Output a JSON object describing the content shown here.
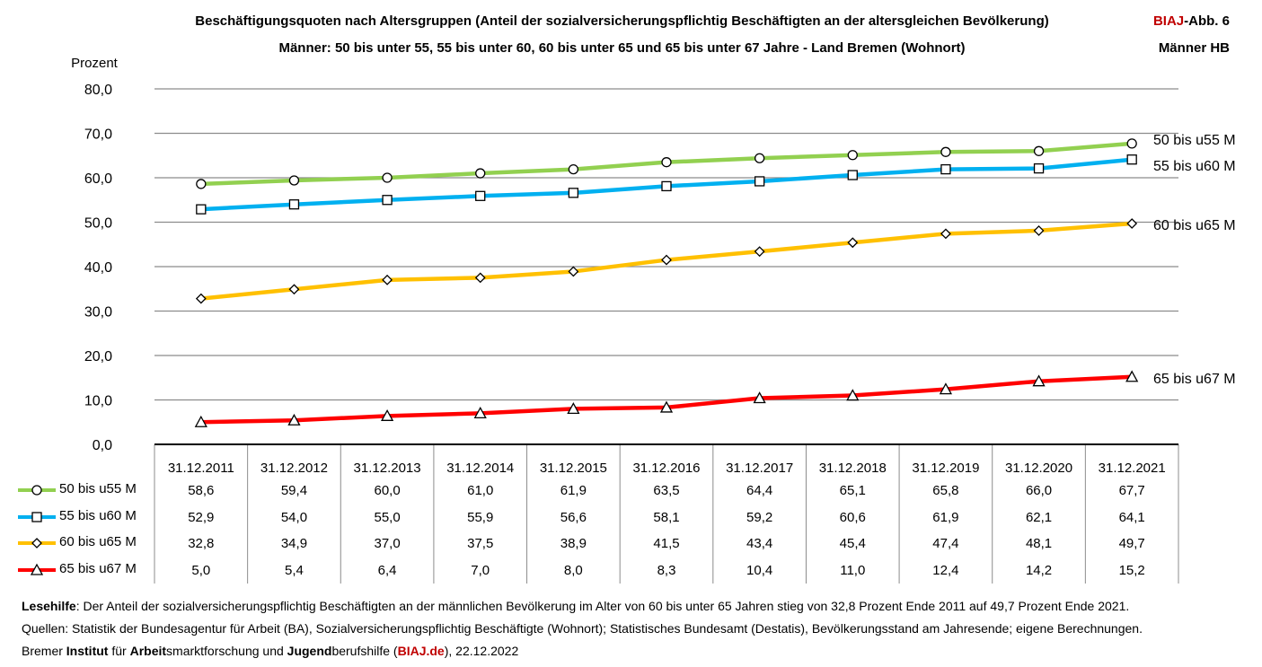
{
  "chart_data": {
    "type": "line",
    "title": "Beschäftigungsquoten nach Altersgruppen (Anteil der sozialversicherungspflichtig Beschäftigten an der altersgleichen Bevölkerung)",
    "subtitle": "Männer: 50 bis unter 55, 55 bis unter 60, 60 bis unter 65 und 65 bis unter 67 Jahre - Land Bremen (Wohnort)",
    "ylabel": "Prozent",
    "ylim": [
      0,
      80
    ],
    "yticks": [
      "0,0",
      "10,0",
      "20,0",
      "30,0",
      "40,0",
      "50,0",
      "60,0",
      "70,0",
      "80,0"
    ],
    "categories": [
      "31.12.2011",
      "31.12.2012",
      "31.12.2013",
      "31.12.2014",
      "31.12.2015",
      "31.12.2016",
      "31.12.2017",
      "31.12.2018",
      "31.12.2019",
      "31.12.2020",
      "31.12.2021"
    ],
    "series": [
      {
        "name": "50 bis u55 M",
        "color": "#92d050",
        "marker": "circle",
        "values": [
          58.6,
          59.4,
          60.0,
          61.0,
          61.9,
          63.5,
          64.4,
          65.1,
          65.8,
          66.0,
          67.7
        ],
        "labels": [
          "58,6",
          "59,4",
          "60,0",
          "61,0",
          "61,9",
          "63,5",
          "64,4",
          "65,1",
          "65,8",
          "66,0",
          "67,7"
        ]
      },
      {
        "name": "55 bis u60 M",
        "color": "#00b0f0",
        "marker": "square",
        "values": [
          52.9,
          54.0,
          55.0,
          55.9,
          56.6,
          58.1,
          59.2,
          60.6,
          61.9,
          62.1,
          64.1
        ],
        "labels": [
          "52,9",
          "54,0",
          "55,0",
          "55,9",
          "56,6",
          "58,1",
          "59,2",
          "60,6",
          "61,9",
          "62,1",
          "64,1"
        ]
      },
      {
        "name": "60 bis u65 M",
        "color": "#ffc000",
        "marker": "diamond",
        "values": [
          32.8,
          34.9,
          37.0,
          37.5,
          38.9,
          41.5,
          43.4,
          45.4,
          47.4,
          48.1,
          49.7
        ],
        "labels": [
          "32,8",
          "34,9",
          "37,0",
          "37,5",
          "38,9",
          "41,5",
          "43,4",
          "45,4",
          "47,4",
          "48,1",
          "49,7"
        ]
      },
      {
        "name": "65 bis u67 M",
        "color": "#ff0000",
        "marker": "triangle",
        "values": [
          5.0,
          5.4,
          6.4,
          7.0,
          8.0,
          8.3,
          10.4,
          11.0,
          12.4,
          14.2,
          15.2
        ],
        "labels": [
          "5,0",
          "5,4",
          "6,4",
          "7,0",
          "8,0",
          "8,3",
          "10,4",
          "11,0",
          "12,4",
          "14,2",
          "15,2"
        ]
      }
    ],
    "grid": true,
    "legend": "data table below chart"
  },
  "badge": {
    "brand": "BIAJ",
    "suffix": "-Abb. 6",
    "line2": "Männer HB"
  },
  "footer": {
    "lesehilfe_label": "Lesehilfe",
    "lesehilfe_text": ": Der Anteil der sozialversicherungspflichtig Beschäftigten an der männlichen Bevölkerung im Alter von 60 bis unter 65 Jahren stieg von 32,8 Prozent Ende 2011 auf 49,7 Prozent Ende 2021.",
    "quellen": "Quellen: Statistik der Bundesagentur für Arbeit (BA), Sozialversicherungspflichtig Beschäftigte (Wohnort); Statistisches Bundesamt (Destatis), Bevölkerungsstand am Jahresende; eigene Berechnungen.",
    "p1": "Bremer ",
    "b1": "Institut",
    "p2": " für ",
    "b2": "Arbeit",
    "p3": "smarktforschung und ",
    "b3": "Jugend",
    "p4": "berufshilfe (",
    "link": "BIAJ.de",
    "p5": "), 22.12.2022"
  }
}
